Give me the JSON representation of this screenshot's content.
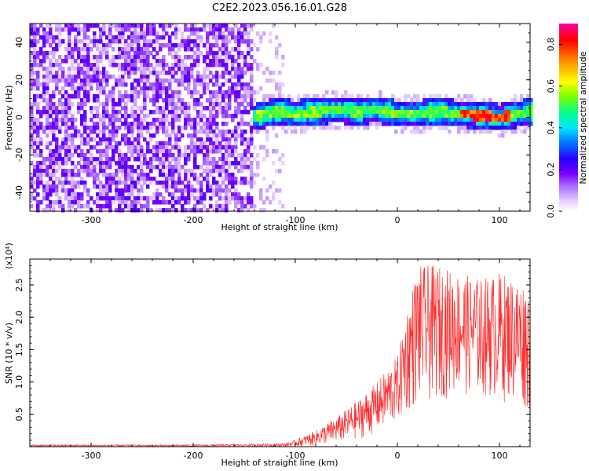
{
  "title": "C2E2.2023.056.16.01.G28",
  "chart_data": [
    {
      "type": "heatmap",
      "xlabel": "Height of straight line (km)",
      "ylabel": "Frequency (Hz)",
      "xlim": [
        -360,
        130
      ],
      "ylim": [
        -50,
        50
      ],
      "xticks": [
        -300,
        -200,
        -100,
        0,
        100
      ],
      "yticks": [
        -40,
        -20,
        0,
        20,
        40
      ],
      "colorbar": {
        "label": "Normalized spectral amplitude",
        "range": [
          0.0,
          0.9
        ],
        "ticks": [
          "0.0",
          "0.2",
          "0.4",
          "0.6",
          "0.8"
        ],
        "colors": [
          "#ffffff",
          "#e6ccff",
          "#8a2be2",
          "#6a00ff",
          "#0000ff",
          "#00ffff",
          "#00ff80",
          "#ffff00",
          "#ff8000",
          "#ff0000",
          "#ff00aa"
        ]
      },
      "regions": [
        {
          "x_range": [
            -360,
            -140
          ],
          "y_range": [
            -50,
            50
          ],
          "description_level": 0.15
        },
        {
          "x_range": [
            -140,
            -110
          ],
          "y_range": [
            -50,
            50
          ],
          "description_level": 0.05
        },
        {
          "x_range": [
            -140,
            130
          ],
          "y_center": [
            0,
            5,
            3,
            2,
            1,
            0,
            0,
            2
          ],
          "y_halfwidth": 5,
          "level": 0.5
        }
      ],
      "ridge": {
        "x": [
          -140,
          -120,
          -100,
          -80,
          -60,
          -40,
          -20,
          0,
          20,
          40,
          60,
          80,
          100,
          120,
          130
        ],
        "y": [
          0,
          3,
          2,
          3,
          4,
          3,
          4,
          2,
          2,
          3,
          2,
          1,
          0,
          2,
          3
        ]
      }
    },
    {
      "type": "line",
      "xlabel": "Height of straight line (km)",
      "ylabel": "SNR (10 * v/v)",
      "yscale_label": "(x10⁴)",
      "xlim": [
        -360,
        130
      ],
      "ylim": [
        0,
        2.9
      ],
      "xticks": [
        -300,
        -200,
        -100,
        0,
        100
      ],
      "yticks": [
        0.5,
        1.0,
        1.5,
        2.0,
        2.5
      ],
      "color": "#ff3030",
      "envelope": {
        "x": [
          -360,
          -200,
          -110,
          -100,
          -80,
          -60,
          -40,
          -20,
          0,
          10,
          20,
          40,
          60,
          80,
          100,
          120,
          130
        ],
        "upper": [
          0.03,
          0.03,
          0.05,
          0.1,
          0.25,
          0.45,
          0.7,
          1.0,
          1.4,
          2.2,
          2.8,
          2.8,
          2.7,
          2.6,
          2.7,
          2.6,
          2.5
        ],
        "lower": [
          0.0,
          0.0,
          0.0,
          0.0,
          0.0,
          0.05,
          0.1,
          0.2,
          0.35,
          0.5,
          0.6,
          0.7,
          0.8,
          0.75,
          0.7,
          0.6,
          0.5
        ]
      }
    }
  ]
}
